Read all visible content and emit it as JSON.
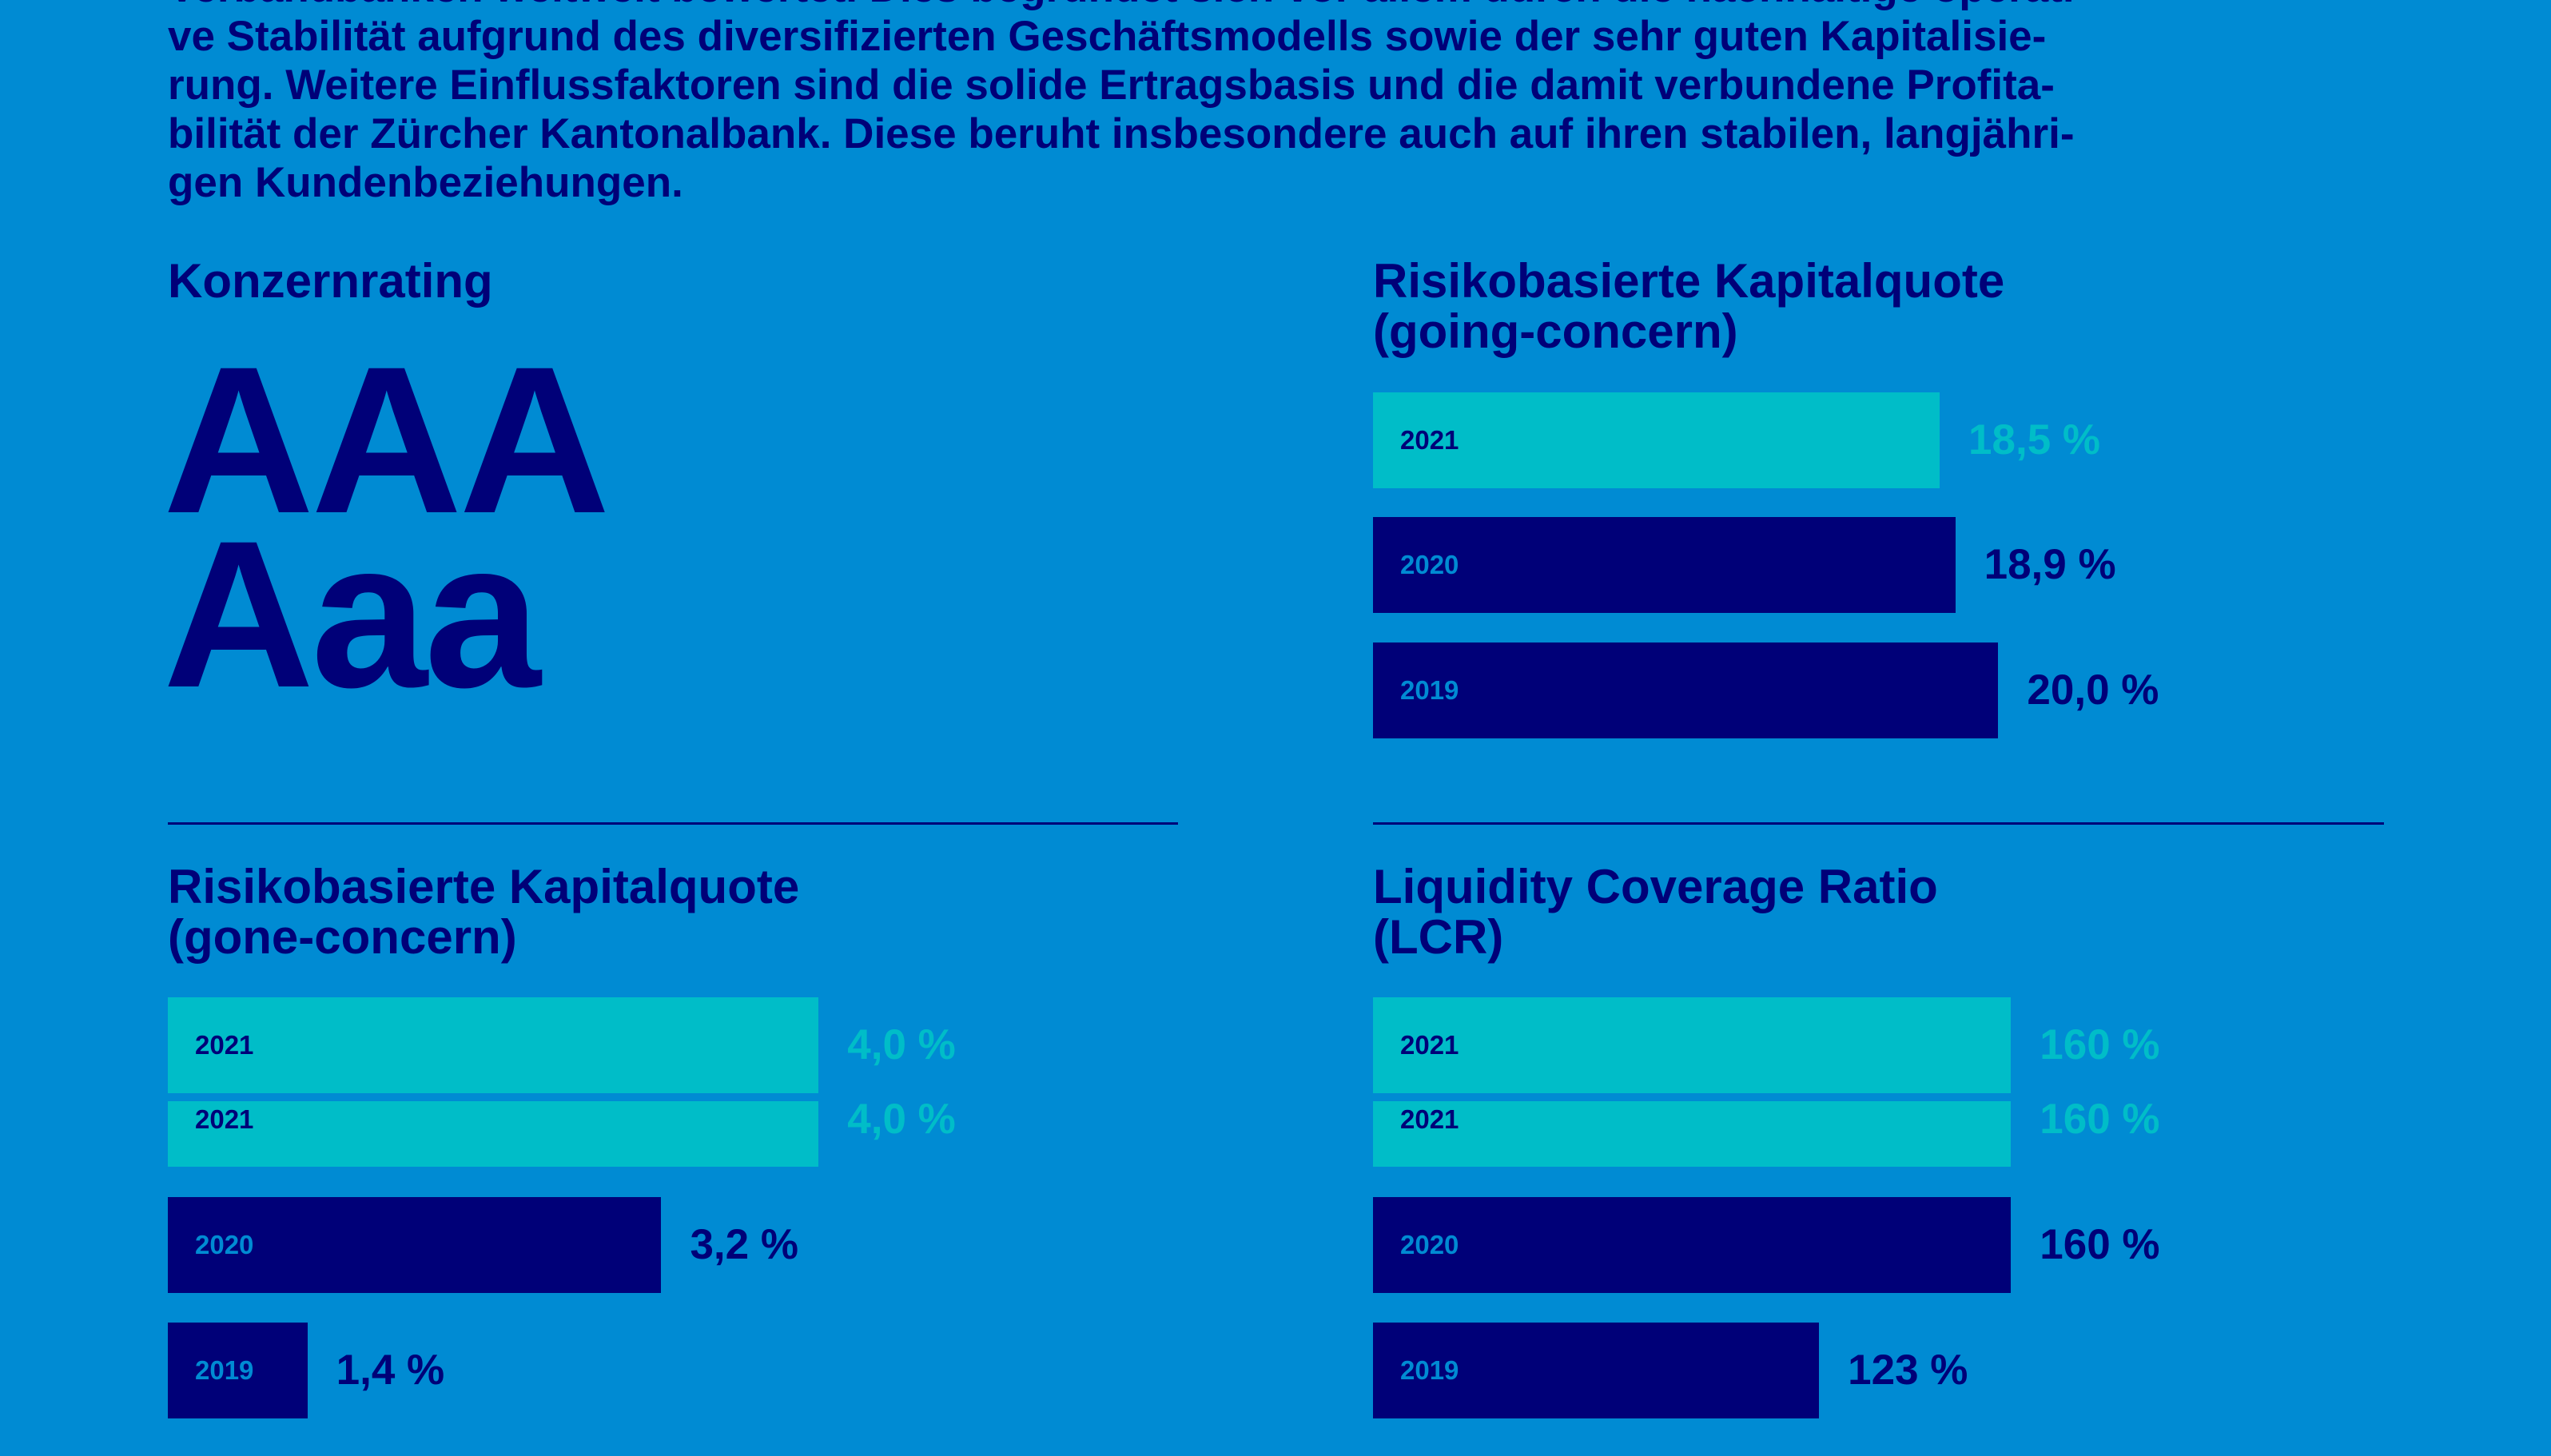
{
  "intro": {
    "lines": [
      "Verbandbanken weltweit bewertet. Dies begründet sich vor allem durch die nachhaltige operati-",
      "ve Stabilität aufgrund des diversifizierten Geschäftsmodells sowie der sehr guten Kapitalisie-",
      "rung. Weitere Einflussfaktoren sind die solide Ertragsbasis und die damit verbundene Profita-",
      "bilität der Zürcher Kantonalbank. Diese beruht insbesondere auch auf ihren stabilen, langjähri-",
      "gen Kundenbeziehungen."
    ]
  },
  "rating": {
    "title": "Konzernrating",
    "values": [
      "AAA",
      "Aaa"
    ]
  },
  "colors": {
    "background": "#008BD3",
    "navy": "#000078",
    "cyan": "#00BDC8"
  },
  "chart_data": [
    {
      "type": "bar",
      "orientation": "horizontal",
      "title": [
        "Risikobasierte Kapitalquote",
        "(going-concern)"
      ],
      "bars": [
        {
          "category": "2021",
          "value": 18.5,
          "label": "18,5 %",
          "color": "#00BDC8"
        },
        {
          "category": "2020",
          "value": 18.9,
          "label": "18,9 %",
          "color": "#000078"
        },
        {
          "category": "2019",
          "value": 20.0,
          "label": "20,0 %",
          "color": "#000078"
        }
      ]
    },
    {
      "type": "bar",
      "orientation": "horizontal",
      "title": [
        "Risikobasierte Kapitalquote",
        "(gone-concern)"
      ],
      "bars": [
        {
          "category": "2021",
          "value": 4.0,
          "label": "4,0 %",
          "color": "#00BDC8"
        },
        {
          "category": "2021",
          "value": 4.0,
          "label": "4,0 %",
          "color": "#00BDC8"
        },
        {
          "category": "2020",
          "value": 3.2,
          "label": "3,2 %",
          "color": "#000078"
        },
        {
          "category": "2019",
          "value": 1.4,
          "label": "1,4 %",
          "color": "#000078"
        }
      ]
    },
    {
      "type": "bar",
      "orientation": "horizontal",
      "title": [
        "Liquidity Coverage Ratio",
        "(LCR)"
      ],
      "bars": [
        {
          "category": "2021",
          "value": 160,
          "label": "160 %",
          "color": "#00BDC8"
        },
        {
          "category": "2021",
          "value": 160,
          "label": "160 %",
          "color": "#00BDC8"
        },
        {
          "category": "2020",
          "value": 160,
          "label": "160 %",
          "color": "#000078"
        },
        {
          "category": "2019",
          "value": 123,
          "label": "123 %",
          "color": "#000078"
        }
      ]
    }
  ]
}
